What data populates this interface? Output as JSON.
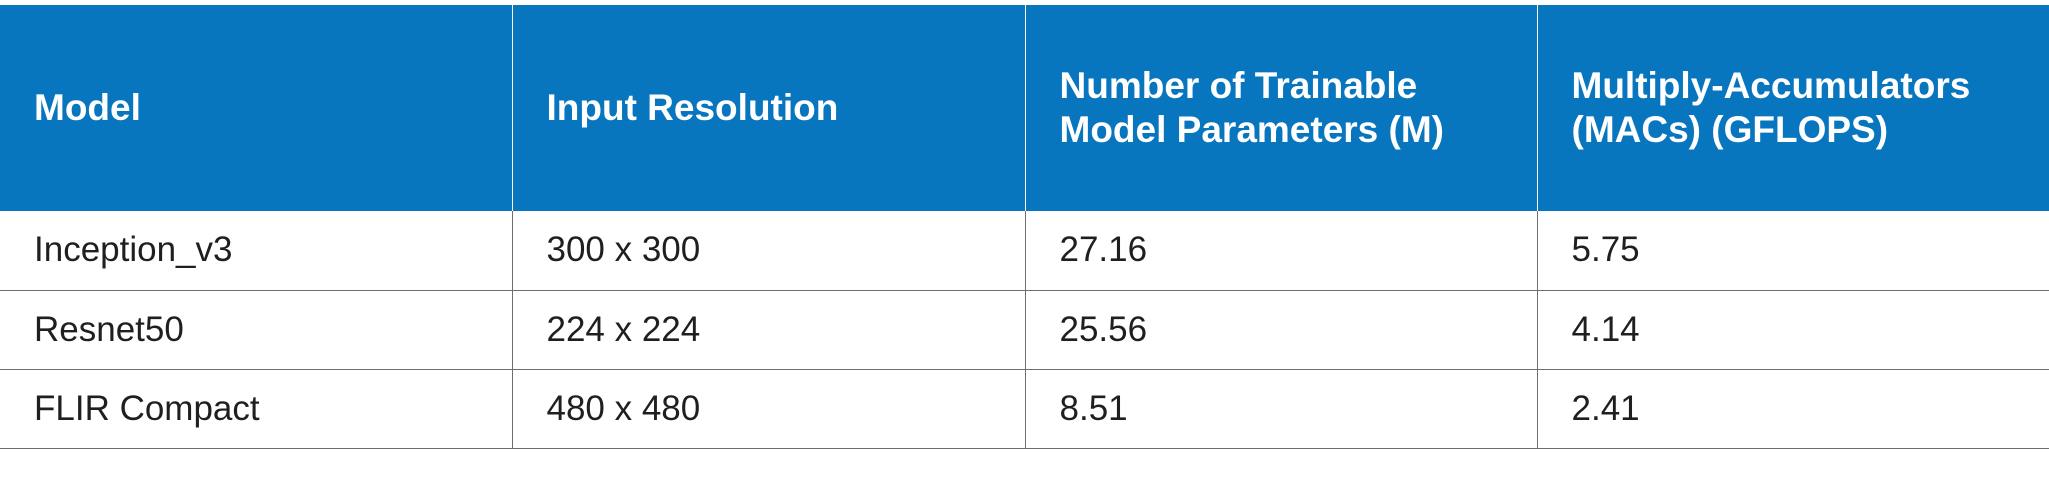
{
  "table": {
    "headers": [
      "Model",
      "Input Resolution",
      "Number of Trainable Model Parameters (M)",
      "Multiply-Accumulators (MACs) (GFLOPS)"
    ],
    "rows": [
      [
        "Inception_v3",
        "300 x 300",
        "27.16",
        "5.75"
      ],
      [
        "Resnet50",
        "224 x 224",
        "25.56",
        "4.14"
      ],
      [
        "FLIR Compact",
        "480 x 480",
        "8.51",
        "2.41"
      ]
    ]
  },
  "colors": {
    "header_background": "#0876be",
    "header_text": "#ffffff",
    "body_text": "#1f1f1f",
    "grid_lines": "#6e6e6e"
  }
}
